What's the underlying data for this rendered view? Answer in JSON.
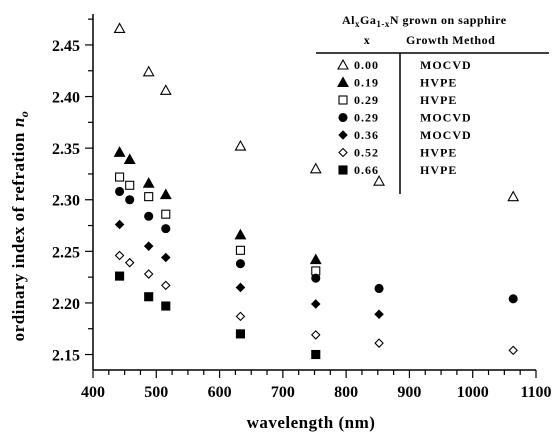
{
  "chart_data": {
    "type": "scatter",
    "title": "",
    "xlabel": "wavelength (nm)",
    "ylabel": "ordinary index of refration",
    "ylabel_symbol": "n",
    "ylabel_subscript": "o",
    "xlim": [
      400,
      1100
    ],
    "ylim": [
      2.135,
      2.48
    ],
    "xticks": [
      400,
      500,
      600,
      700,
      800,
      900,
      1000,
      1100
    ],
    "xtick_labels": [
      "400",
      "500",
      "600",
      "700",
      "800",
      "900",
      "1000",
      "1100"
    ],
    "yticks": [
      2.15,
      2.2,
      2.25,
      2.3,
      2.35,
      2.4,
      2.45
    ],
    "ytick_labels": [
      "2.15",
      "2.20",
      "2.25",
      "2.30",
      "2.35",
      "2.40",
      "2.45"
    ],
    "grid": false,
    "legend": {
      "placement": "top-right",
      "title_parts": [
        "Al",
        "x",
        "Ga",
        "1-x",
        "N grown on sapphire"
      ],
      "col1_header": "x",
      "col2_header": "Growth Method"
    },
    "series": [
      {
        "name": "0.00",
        "method": "MOCVD",
        "marker": "triangle-open",
        "points": [
          [
            442,
            2.466
          ],
          [
            488,
            2.424
          ],
          [
            515,
            2.406
          ],
          [
            633,
            2.352
          ],
          [
            752,
            2.33
          ],
          [
            852,
            2.318
          ],
          [
            1064,
            2.303
          ]
        ]
      },
      {
        "name": "0.19",
        "method": "HVPE",
        "marker": "triangle-filled",
        "points": [
          [
            442,
            2.346
          ],
          [
            458,
            2.339
          ],
          [
            488,
            2.316
          ],
          [
            515,
            2.305
          ],
          [
            633,
            2.266
          ],
          [
            752,
            2.242
          ]
        ]
      },
      {
        "name": "0.29",
        "method": "HVPE",
        "marker": "square-open",
        "points": [
          [
            442,
            2.322
          ],
          [
            458,
            2.314
          ],
          [
            488,
            2.303
          ],
          [
            515,
            2.286
          ],
          [
            633,
            2.251
          ],
          [
            752,
            2.231
          ]
        ]
      },
      {
        "name": "0.29",
        "method": "MOCVD",
        "marker": "circle-filled",
        "points": [
          [
            442,
            2.308
          ],
          [
            458,
            2.3
          ],
          [
            488,
            2.284
          ],
          [
            515,
            2.272
          ],
          [
            633,
            2.238
          ],
          [
            752,
            2.224
          ],
          [
            852,
            2.214
          ],
          [
            1064,
            2.204
          ]
        ]
      },
      {
        "name": "0.36",
        "method": "MOCVD",
        "marker": "diamond-filled",
        "points": [
          [
            442,
            2.276
          ],
          [
            488,
            2.255
          ],
          [
            515,
            2.244
          ],
          [
            633,
            2.215
          ],
          [
            752,
            2.199
          ],
          [
            852,
            2.189
          ]
        ]
      },
      {
        "name": "0.52",
        "method": "HVPE",
        "marker": "diamond-open",
        "points": [
          [
            442,
            2.246
          ],
          [
            458,
            2.239
          ],
          [
            488,
            2.228
          ],
          [
            515,
            2.217
          ],
          [
            633,
            2.187
          ],
          [
            752,
            2.169
          ],
          [
            852,
            2.161
          ],
          [
            1064,
            2.154
          ]
        ]
      },
      {
        "name": "0.66",
        "method": "HVPE",
        "marker": "square-filled",
        "points": [
          [
            442,
            2.226
          ],
          [
            488,
            2.206
          ],
          [
            515,
            2.197
          ],
          [
            633,
            2.17
          ],
          [
            752,
            2.15
          ]
        ]
      }
    ]
  }
}
